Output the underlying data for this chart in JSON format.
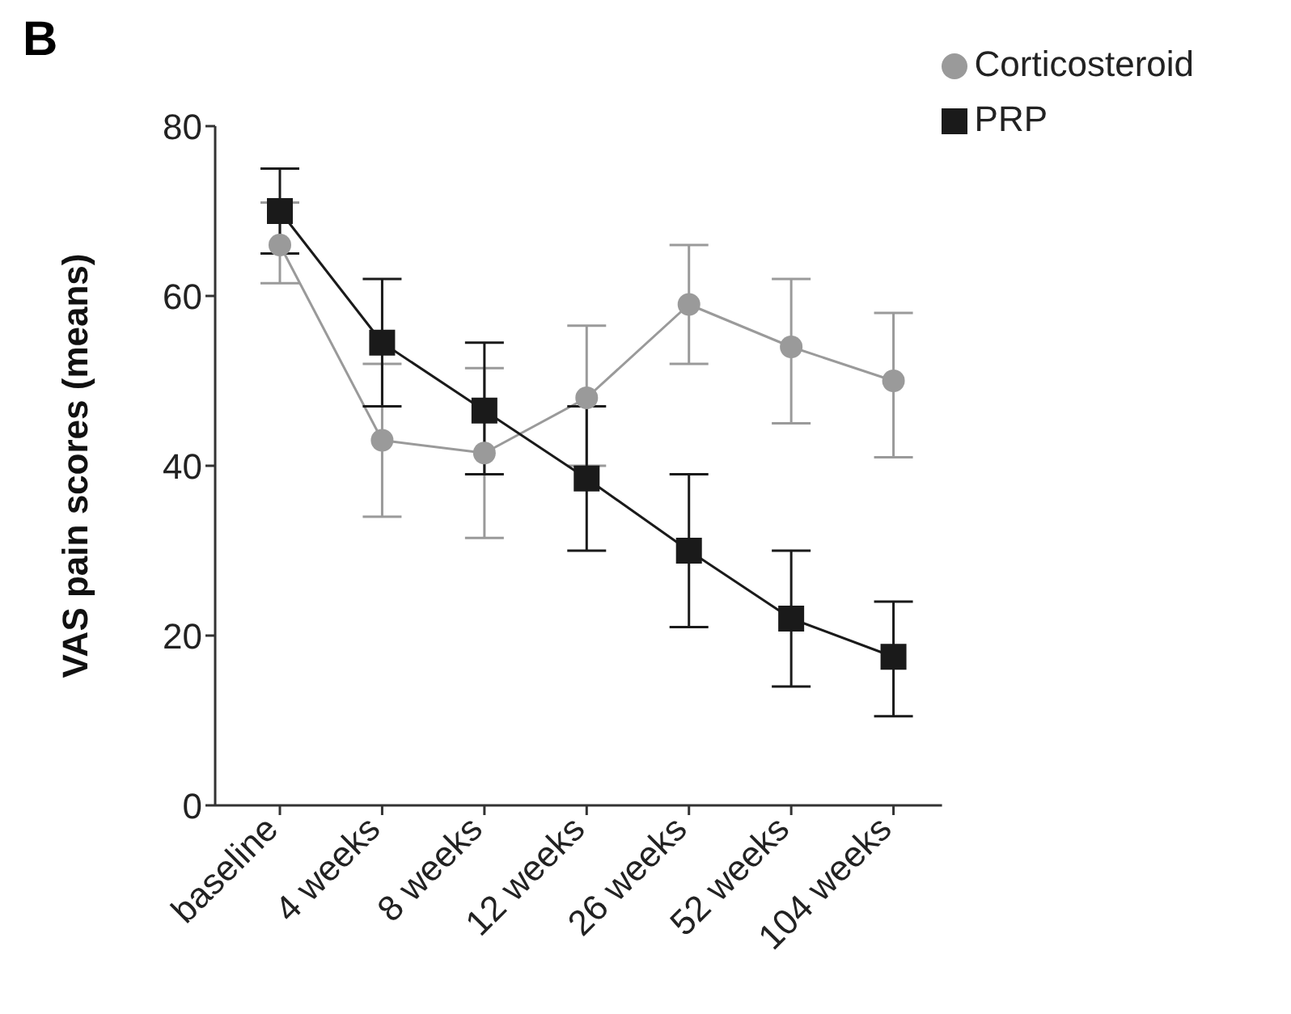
{
  "chart_data": {
    "type": "line",
    "ylabel": "VAS pain scores (means)",
    "annotations": [
      "B"
    ],
    "categories": [
      "baseline",
      "4 weeks",
      "8 weeks",
      "12 weeks",
      "26 weeks",
      "52 weeks",
      "104 weeks"
    ],
    "ylim": [
      0,
      80
    ],
    "yticks": [
      0,
      20,
      40,
      60,
      80
    ],
    "grid": false,
    "legend": "top right",
    "series": [
      {
        "name": "Corticosteroid",
        "color": "#9a9a9a",
        "marker": "circle",
        "values": [
          66,
          43,
          41.5,
          48,
          59,
          54,
          50
        ],
        "errors": [
          [
            61.5,
            71
          ],
          [
            34,
            52
          ],
          [
            31.5,
            51.5
          ],
          [
            40,
            56.5
          ],
          [
            52,
            66
          ],
          [
            45,
            62
          ],
          [
            41,
            58
          ]
        ]
      },
      {
        "name": "PRP",
        "color": "#1a1a1a",
        "marker": "square",
        "values": [
          70,
          54.5,
          46.5,
          38.5,
          30,
          22,
          17.5
        ],
        "errors": [
          [
            65,
            75
          ],
          [
            47,
            62
          ],
          [
            39,
            54.5
          ],
          [
            30,
            47
          ],
          [
            21,
            39
          ],
          [
            14,
            30
          ],
          [
            10.5,
            24
          ]
        ]
      }
    ]
  }
}
